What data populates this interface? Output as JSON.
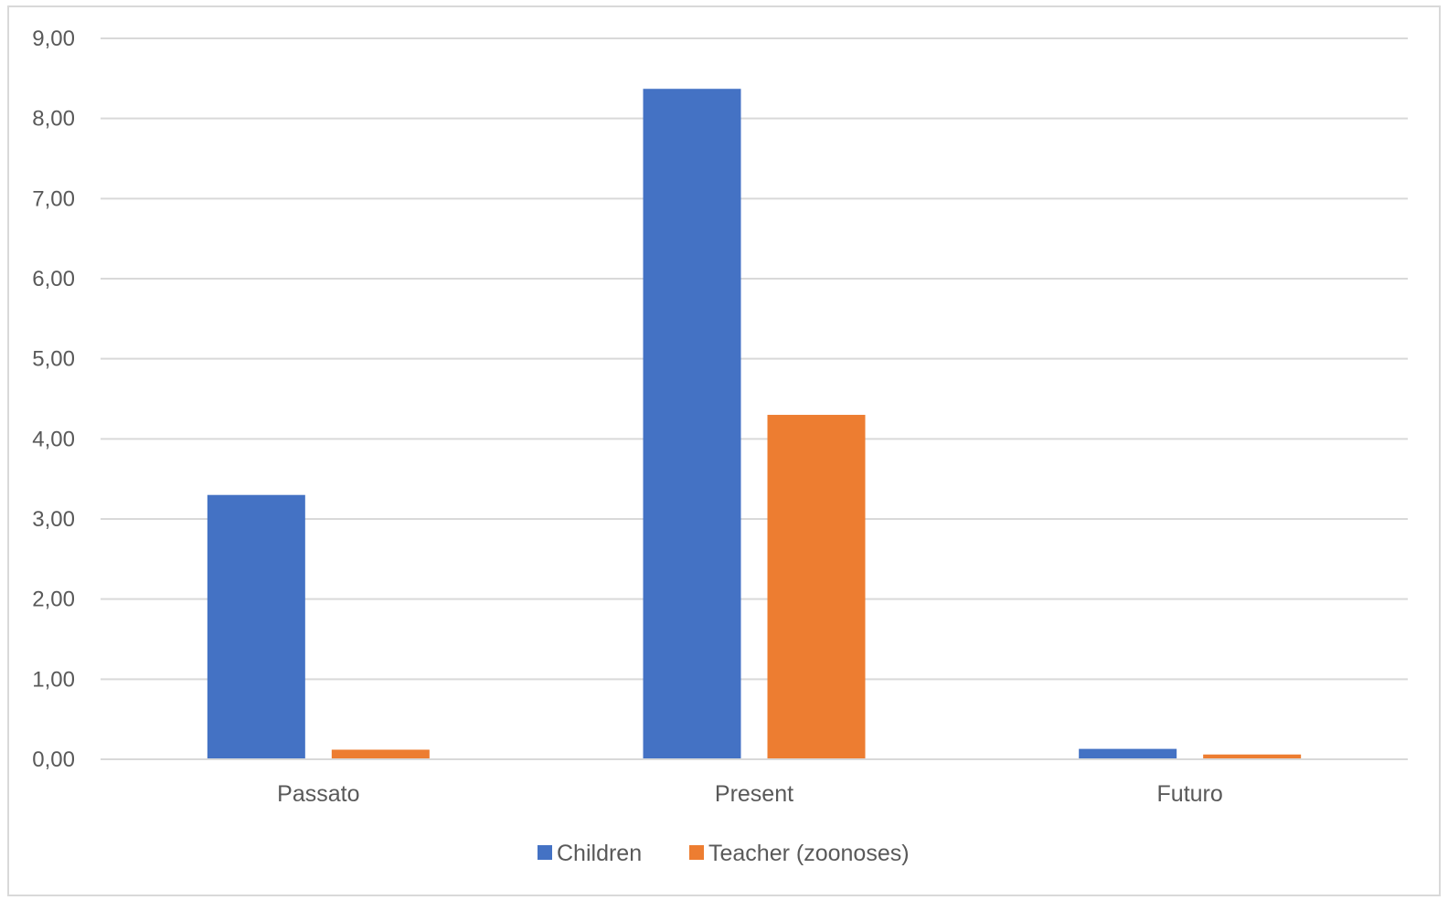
{
  "chart_data": {
    "type": "bar",
    "title": "",
    "xlabel": "",
    "ylabel": "",
    "categories": [
      "Passato",
      "Present",
      "Futuro"
    ],
    "series": [
      {
        "name": "Children",
        "values": [
          3.3,
          8.37,
          0.13
        ],
        "color": "#4472C4"
      },
      {
        "name": "Teacher (zoonoses)",
        "values": [
          0.12,
          4.3,
          0.06
        ],
        "color": "#ED7D31"
      }
    ],
    "ylim": [
      0,
      9
    ],
    "ytick_step": 1,
    "ytick_labels": [
      "0,00",
      "1,00",
      "2,00",
      "3,00",
      "4,00",
      "5,00",
      "6,00",
      "7,00",
      "8,00",
      "9,00"
    ],
    "grid": true,
    "gridline_color": "#d9d9d9",
    "legend_position": "bottom"
  }
}
